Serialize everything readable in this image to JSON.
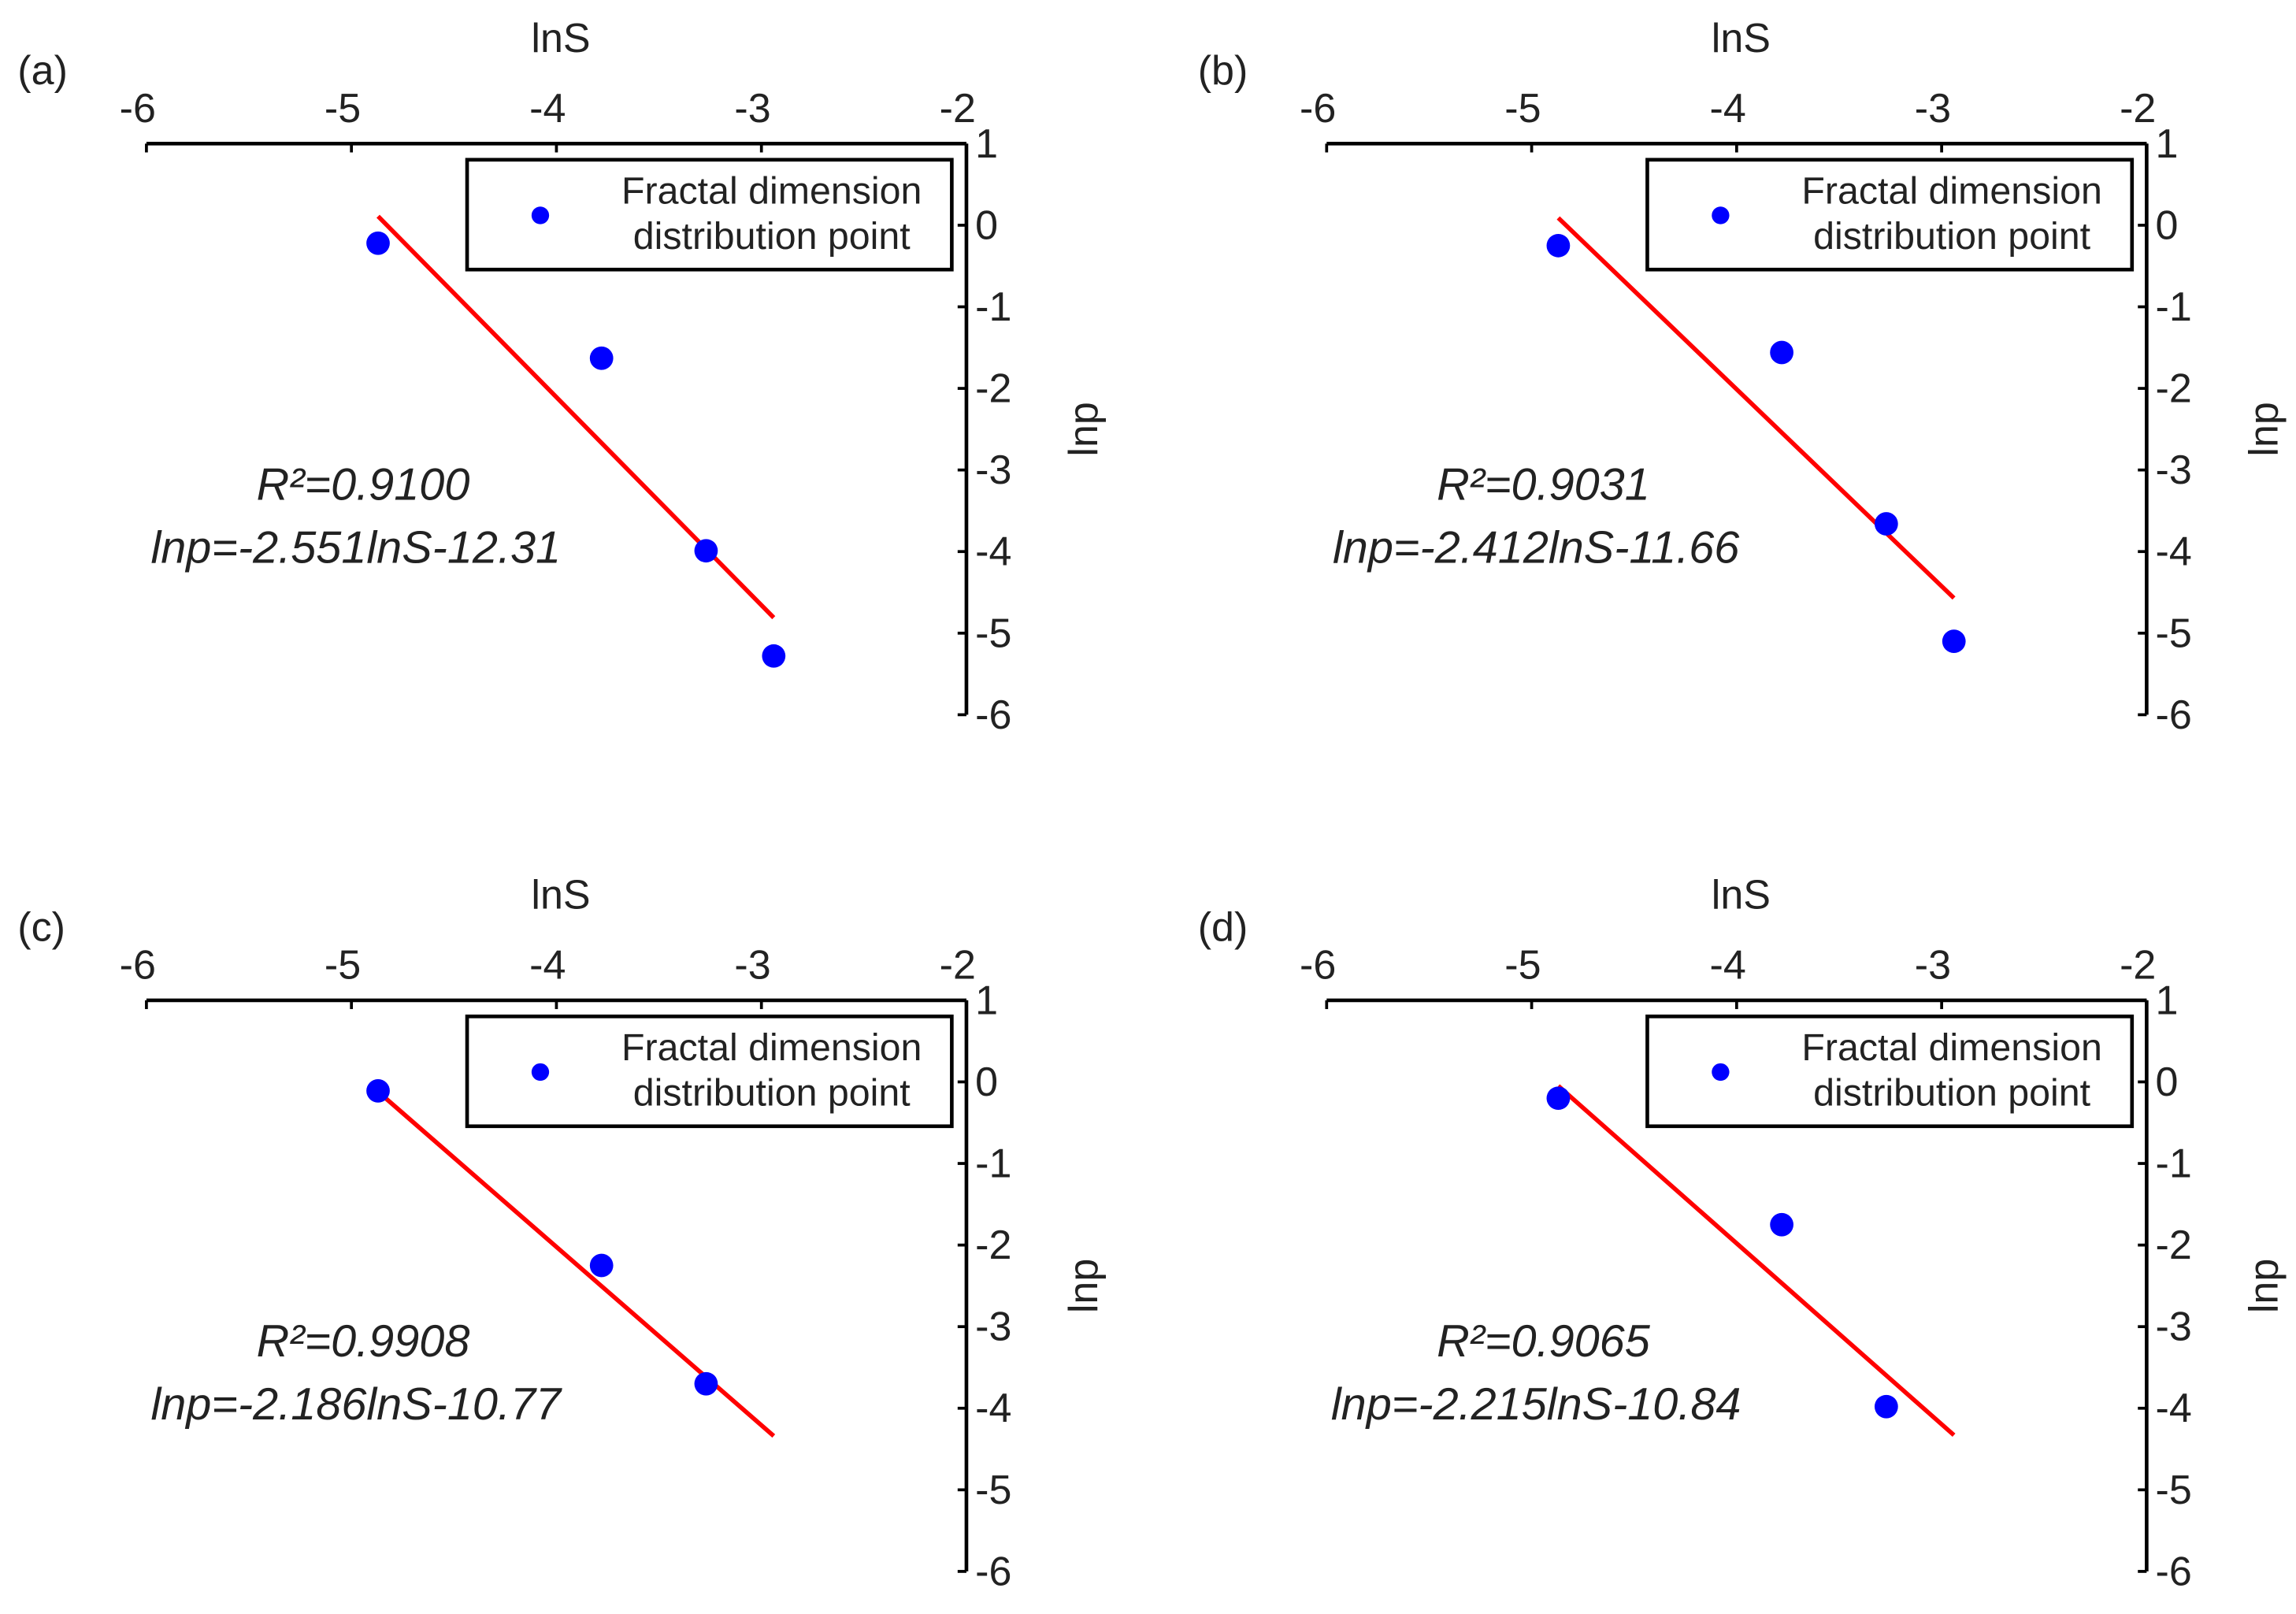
{
  "chart_data": [
    {
      "type": "scatter",
      "panel_label": "(a)",
      "x_label": "lnS",
      "y_label": "lnp",
      "xlim": [
        -6,
        -2
      ],
      "xticks": [
        -6,
        -5,
        -4,
        -3,
        -2
      ],
      "ylim": [
        -6,
        1
      ],
      "yticks": [
        -6,
        -5,
        -4,
        -3,
        -2,
        -1,
        0,
        1
      ],
      "legend": "upper right",
      "series": [
        {
          "name": "Fractal dimension distribution point",
          "color": "#0000ff",
          "x": [
            -4.87,
            -3.78,
            -3.27,
            -2.94
          ],
          "values": [
            -0.22,
            -1.63,
            -3.99,
            -5.28
          ]
        }
      ],
      "fit": {
        "color": "#ff0000",
        "x": [
          -4.87,
          -2.94
        ],
        "values": [
          0.11,
          -4.81
        ]
      },
      "annotations": [
        "R²=0.9100",
        "lnp=-2.551lnS-12.31"
      ]
    },
    {
      "type": "scatter",
      "panel_label": "(b)",
      "x_label": "lnS",
      "y_label": "lnp",
      "xlim": [
        -6,
        -2
      ],
      "xticks": [
        -6,
        -5,
        -4,
        -3,
        -2
      ],
      "ylim": [
        -6,
        1
      ],
      "yticks": [
        -6,
        -5,
        -4,
        -3,
        -2,
        -1,
        0,
        1
      ],
      "legend": "upper right",
      "series": [
        {
          "name": "Fractal dimension distribution point",
          "color": "#0000ff",
          "x": [
            -4.87,
            -3.78,
            -3.27,
            -2.94
          ],
          "values": [
            -0.25,
            -1.56,
            -3.66,
            -5.1
          ]
        }
      ],
      "fit": {
        "color": "#ff0000",
        "x": [
          -4.87,
          -2.94
        ],
        "values": [
          0.09,
          -4.57
        ]
      },
      "annotations": [
        "R²=0.9031",
        "lnp=-2.412lnS-11.66"
      ]
    },
    {
      "type": "scatter",
      "panel_label": "(c)",
      "x_label": "lnS",
      "y_label": "lnp",
      "xlim": [
        -6,
        -2
      ],
      "xticks": [
        -6,
        -5,
        -4,
        -3,
        -2
      ],
      "ylim": [
        -6,
        1
      ],
      "yticks": [
        -6,
        -5,
        -4,
        -3,
        -2,
        -1,
        0,
        1
      ],
      "legend": "upper right",
      "series": [
        {
          "name": "Fractal dimension distribution point",
          "color": "#0000ff",
          "x": [
            -4.87,
            -3.78,
            -3.27
          ],
          "values": [
            -0.11,
            -2.25,
            -3.7
          ]
        }
      ],
      "fit": {
        "color": "#ff0000",
        "x": [
          -4.87,
          -2.94
        ],
        "values": [
          -0.12,
          -4.34
        ]
      },
      "annotations": [
        "R²=0.9908",
        "lnp=-2.186lnS-10.77"
      ]
    },
    {
      "type": "scatter",
      "panel_label": "(d)",
      "x_label": "lnS",
      "y_label": "lnp",
      "xlim": [
        -6,
        -2
      ],
      "xticks": [
        -6,
        -5,
        -4,
        -3,
        -2
      ],
      "ylim": [
        -6,
        1
      ],
      "yticks": [
        -6,
        -5,
        -4,
        -3,
        -2,
        -1,
        0,
        1
      ],
      "legend": "upper right",
      "series": [
        {
          "name": "Fractal dimension distribution point",
          "color": "#0000ff",
          "x": [
            -4.87,
            -3.78,
            -3.27
          ],
          "values": [
            -0.2,
            -1.75,
            -3.98
          ]
        }
      ],
      "fit": {
        "color": "#ff0000",
        "x": [
          -4.87,
          -2.94
        ],
        "values": [
          -0.05,
          -4.33
        ]
      },
      "annotations": [
        "R²=0.9065",
        "lnp=-2.215lnS-10.84"
      ]
    }
  ]
}
